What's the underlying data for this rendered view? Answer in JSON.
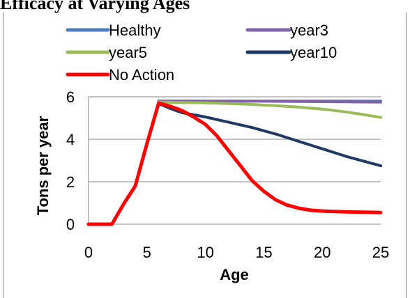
{
  "title": "Efficacy at Varying Ages",
  "chart_data": {
    "type": "line",
    "xlabel": "Age",
    "ylabel": "Tons per year",
    "xlim": [
      0,
      25
    ],
    "ylim": [
      0,
      6
    ],
    "x_ticks": [
      0,
      5,
      10,
      15,
      20,
      25
    ],
    "y_ticks": [
      0,
      2,
      4,
      6
    ],
    "grid": "horizontal major gridlines",
    "legend_position": "top",
    "series": [
      {
        "name": "Healthy",
        "color": "#4a7ebb",
        "x": [
          6,
          25
        ],
        "y": [
          5.8,
          5.8
        ]
      },
      {
        "name": "year3",
        "color": "#7f62a8",
        "x": [
          6,
          10,
          15,
          20,
          25
        ],
        "y": [
          5.8,
          5.8,
          5.79,
          5.77,
          5.75
        ]
      },
      {
        "name": "year5",
        "color": "#9bbb59",
        "x": [
          6,
          8,
          10,
          12,
          14,
          16,
          18,
          20,
          22,
          24,
          25
        ],
        "y": [
          5.75,
          5.73,
          5.71,
          5.68,
          5.64,
          5.58,
          5.51,
          5.42,
          5.29,
          5.12,
          5.03
        ]
      },
      {
        "name": "year10",
        "color": "#1f3864",
        "x": [
          6,
          7,
          8,
          10,
          12,
          14,
          16,
          18,
          20,
          22,
          24,
          25
        ],
        "y": [
          5.68,
          5.45,
          5.25,
          5.05,
          4.8,
          4.55,
          4.25,
          3.9,
          3.55,
          3.2,
          2.9,
          2.75
        ]
      },
      {
        "name": "No Action",
        "color": "#ff0000",
        "x": [
          0,
          1,
          2,
          3,
          4,
          5,
          6,
          7,
          8,
          9,
          10,
          11,
          12,
          13,
          14,
          15,
          16,
          17,
          18,
          19,
          20,
          21,
          22,
          23,
          24,
          25
        ],
        "y": [
          0,
          0,
          0,
          0.95,
          1.8,
          3.8,
          5.7,
          5.55,
          5.35,
          5.05,
          4.7,
          4.15,
          3.45,
          2.75,
          2.05,
          1.55,
          1.15,
          0.9,
          0.75,
          0.66,
          0.62,
          0.6,
          0.58,
          0.57,
          0.56,
          0.55
        ]
      }
    ]
  }
}
